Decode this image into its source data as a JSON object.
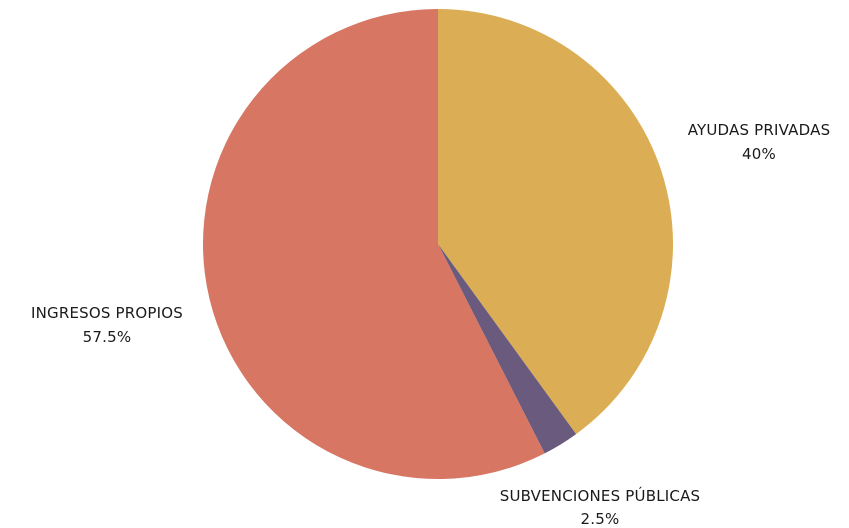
{
  "chart_data": {
    "type": "pie",
    "start_angle_deg": 0,
    "direction": "clockwise",
    "slices": [
      {
        "label": "AYUDAS PRIVADAS",
        "value": 40,
        "value_label": "40%",
        "color": "#DBAE55"
      },
      {
        "label": "SUBVENCIONES PÚBLICAS",
        "value": 2.5,
        "value_label": "2.5%",
        "color": "#6A5A7E"
      },
      {
        "label": "INGRESOS PROPIOS",
        "value": 57.5,
        "value_label": "57.5%",
        "color": "#D77663"
      }
    ]
  }
}
